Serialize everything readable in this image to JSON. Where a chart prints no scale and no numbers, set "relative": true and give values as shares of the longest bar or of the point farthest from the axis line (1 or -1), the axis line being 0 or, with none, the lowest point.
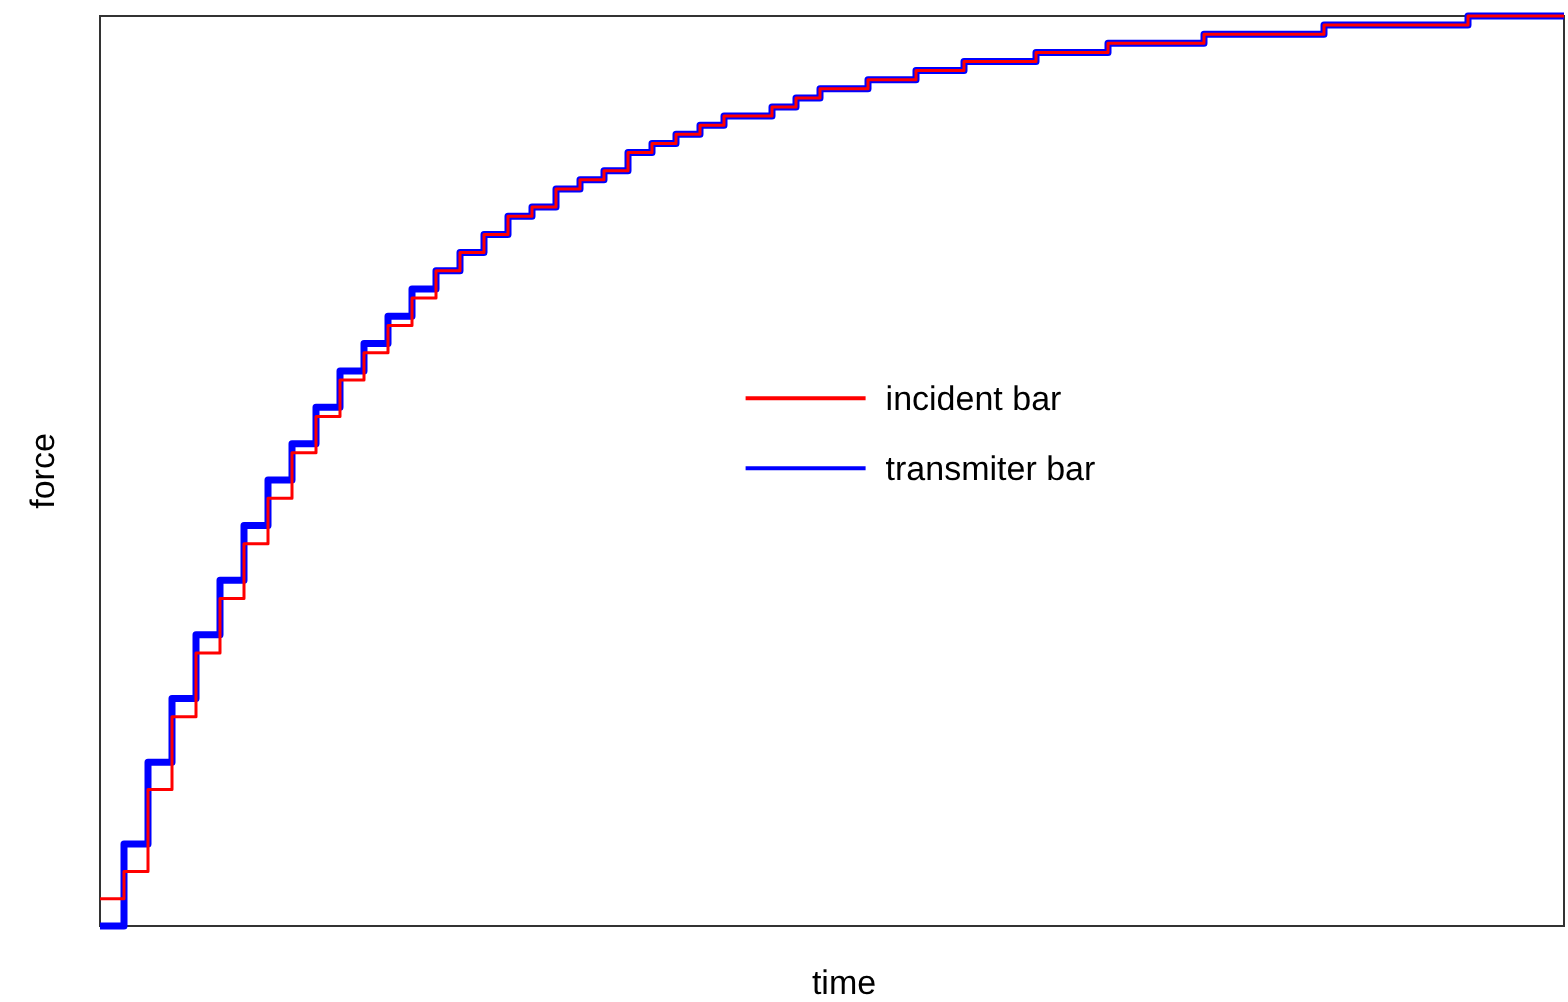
{
  "chart_data": {
    "type": "step",
    "xlabel": "time",
    "ylabel": "force",
    "relative": true,
    "legend": "center",
    "grid": false,
    "categories": [
      null,
      null,
      null,
      null,
      null,
      null,
      null,
      null,
      null,
      null,
      null,
      null,
      null,
      null,
      null,
      null,
      null,
      null,
      null,
      null,
      null,
      null,
      null,
      null,
      null,
      null,
      null,
      null,
      null,
      null,
      null,
      null,
      null,
      null,
      null,
      null,
      null,
      null,
      null,
      null,
      null,
      null,
      null,
      null,
      null,
      null,
      null,
      null,
      null,
      null,
      null,
      null,
      null,
      null,
      null,
      null,
      null,
      null,
      null,
      null,
      null,
      null
    ],
    "series": [
      {
        "name": "incident bar",
        "color": "#ff0000",
        "values": [
          0.03,
          0.06,
          0.15,
          0.23,
          0.3,
          0.36,
          0.42,
          0.47,
          0.52,
          0.56,
          0.6,
          0.63,
          0.66,
          0.69,
          0.72,
          0.74,
          0.76,
          0.78,
          0.79,
          0.81,
          0.82,
          0.83,
          0.85,
          0.86,
          0.87,
          0.88,
          0.89,
          0.89,
          0.9,
          0.91,
          0.92,
          0.92,
          0.93,
          0.93,
          0.94,
          0.94,
          0.95,
          0.95,
          0.95,
          0.96,
          0.96,
          0.96,
          0.97,
          0.97,
          0.97,
          0.97,
          0.98,
          0.98,
          0.98,
          0.98,
          0.98,
          0.99,
          0.99,
          0.99,
          0.99,
          0.99,
          0.99,
          1,
          1,
          1,
          1,
          1
        ]
      },
      {
        "name": "transmiter bar",
        "color": "#0000ff",
        "values": [
          0,
          0.09,
          0.18,
          0.25,
          0.32,
          0.38,
          0.44,
          0.49,
          0.53,
          0.57,
          0.61,
          0.64,
          0.67,
          0.7,
          0.72,
          0.74,
          0.76,
          0.78,
          0.79,
          0.81,
          0.82,
          0.83,
          0.85,
          0.86,
          0.87,
          0.88,
          0.89,
          0.89,
          0.9,
          0.91,
          0.92,
          0.92,
          0.93,
          0.93,
          0.94,
          0.94,
          0.95,
          0.95,
          0.95,
          0.96,
          0.96,
          0.96,
          0.97,
          0.97,
          0.97,
          0.97,
          0.98,
          0.98,
          0.98,
          0.98,
          0.98,
          0.99,
          0.99,
          0.99,
          0.99,
          0.99,
          0.99,
          1,
          1,
          1,
          1,
          1
        ]
      }
    ]
  }
}
